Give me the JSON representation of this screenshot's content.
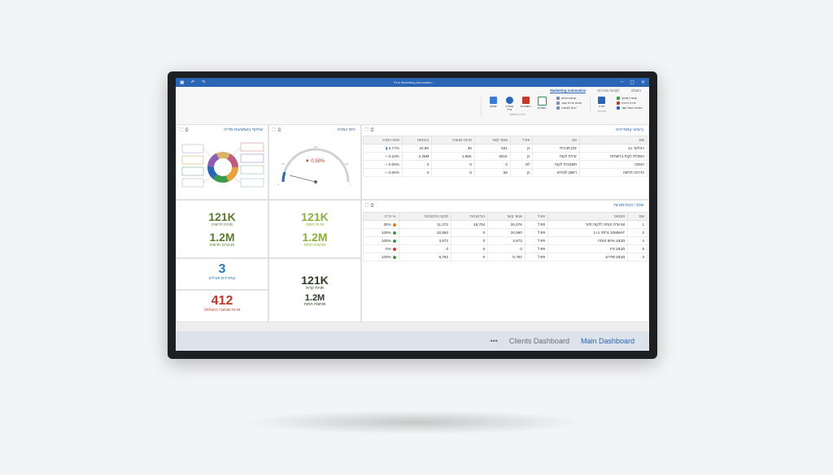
{
  "window": {
    "title": "Fine Marketing Automation"
  },
  "ribbon": {
    "tabs": [
      "Marketing Automation",
      "לקוחות ומכירות",
      "הפעלה"
    ],
    "groups": [
      {
        "label": "יצירת רשימות",
        "buttons": [
          "שאלון",
          "קמפיין מייל",
          "חשבונות",
          "הזמנות"
        ]
      },
      {
        "label": "הגדרות",
        "buttons": [
          "חזרה",
          "צור קשר"
        ]
      }
    ],
    "small_items": [
      "קבוצת שיווק",
      "טופס יצירת קשר",
      "ייבוא לקוחות",
      "עדכון"
    ],
    "small_items_2": [
      "קמפיין שיווקי",
      "יצירת הפניה",
      "רשימת אנשי קשר"
    ]
  },
  "panels": {
    "marketing_summary": {
      "title": "ביצועי קמפיינים",
      "columns": [
        "שם",
        "סוג",
        "פעיל",
        "אנשי קשר",
        "פניות שנוצרו",
        "הכנסות",
        "אחוז המרה"
      ],
      "rows": [
        [
          "ניוזלטר 11",
          "יומן תוכנית",
          "כן",
          "531",
          "36",
          "20.8K",
          "6.77%"
        ],
        [
          "הפעלת לקוח ברשתות",
          "יצירת לקוח",
          "כן",
          "301K",
          "1.95K",
          "2.28M",
          "0.23%"
        ],
        [
          "הזמנה",
          "חשבונית לקוח",
          "לא",
          "0",
          "0",
          "0",
          "0.00%"
        ],
        [
          "הדרכה חדשה",
          "רשום לאירוע",
          "כן",
          "55",
          "0",
          "0",
          "0.00%"
        ]
      ]
    },
    "channels": {
      "title": "שיתוף באמצעות מדיה"
    },
    "gauge": {
      "title": "יחס המרה",
      "value": "0.58%"
    },
    "opportunities": {
      "title": "שלבי ההזדמנויות",
      "columns": [
        "שם",
        "סטטוס",
        "פעיל",
        "אנשי קשר",
        "הזדמנויות",
        "סכום הזדמנויות",
        "% זכייה"
      ],
      "rows": [
        [
          "1",
          "50 ש\"ח הנחה ללקוח חוזר",
          "פעיל",
          "20,076",
          "18,704",
          "11,272",
          "30%"
        ],
        [
          "2",
          "10MMAT גרסה 1+1",
          "פעיל",
          "20,060",
          "0",
          "20,860",
          "100%"
        ],
        [
          "4",
          "מבצע 50% הנחה",
          "פעיל",
          "4,873",
          "0",
          "4,872",
          "100%"
        ],
        [
          "5",
          "מבצע FS",
          "פעיל",
          "0",
          "0",
          "0",
          "0%"
        ],
        [
          "3",
          "מבצע שדרוג",
          "פעיל",
          "8,782",
          "0",
          "8,782",
          "100%"
        ]
      ],
      "status_colors": [
        "#e07b2a",
        "#3c9a4a",
        "#3c9a4a",
        "#d23a3a",
        "#3c9a4a"
      ]
    },
    "kpis": [
      {
        "value": "121K",
        "label": "פניות חדשות",
        "color": "#5b7a2e"
      },
      {
        "value": "1.2M",
        "label": "מבקרים חדשים",
        "color": "#5b7a2e"
      },
      {
        "value": "121K",
        "label": "פניות חמות",
        "color": "#8cad3f"
      },
      {
        "value": "1.2M",
        "label": "פגישות חמות",
        "color": "#8cad3f"
      },
      {
        "value": "3",
        "label": "קמפיינים פעילים",
        "color": "#2b7bb9"
      },
      {
        "value": "412",
        "label": "פניות שנסגרו בהצלחה",
        "color": "#c0392b"
      },
      {
        "value": "121K",
        "label": "פניות קרות",
        "color": "#2f3d22"
      },
      {
        "value": "1.2M",
        "label": "פגישות חמות",
        "color": "#2f3d22"
      }
    ]
  },
  "statusbar": {
    "tabs": [
      "Clients Dashboard",
      "Main Dashboard"
    ],
    "more": "•••"
  }
}
